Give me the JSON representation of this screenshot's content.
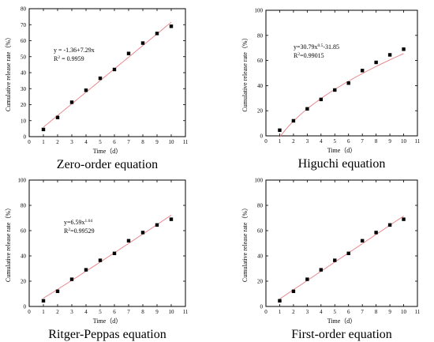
{
  "chart_data": [
    {
      "type": "scatter",
      "title": "Zero-order equation",
      "xlabel": "Time（d）",
      "ylabel": "Cumulative release rate（%）",
      "xlim": [
        0,
        11
      ],
      "ylim": [
        0,
        80
      ],
      "xticks": [
        0,
        1,
        2,
        3,
        4,
        5,
        6,
        7,
        8,
        9,
        10,
        11
      ],
      "yticks": [
        0,
        10,
        20,
        30,
        40,
        50,
        60,
        70,
        80
      ],
      "x": [
        1,
        2,
        3,
        4,
        5,
        6,
        7,
        8,
        9,
        10
      ],
      "y": [
        4.5,
        12,
        21.5,
        29,
        36.5,
        42,
        52,
        58.5,
        64.5,
        69
      ],
      "equation": {
        "line1": "y = -1.36+7.29x",
        "r2_prefix": "R",
        "r2_sup": "2",
        "r2_value": " = 0.9959"
      },
      "fit": {
        "model": "linear",
        "a": 7.29,
        "b": -1.36
      }
    },
    {
      "type": "scatter",
      "title": "Higuchi equation",
      "xlabel": "Time（d）",
      "ylabel": "Cumulative release rate（%）",
      "xlim": [
        0,
        11
      ],
      "ylim": [
        0,
        100
      ],
      "xticks": [
        0,
        1,
        2,
        3,
        4,
        5,
        6,
        7,
        8,
        9,
        10,
        11
      ],
      "yticks": [
        0,
        20,
        40,
        60,
        80,
        100
      ],
      "x": [
        1,
        2,
        3,
        4,
        5,
        6,
        7,
        8,
        9,
        10
      ],
      "y": [
        4.5,
        12,
        21.5,
        29,
        36.5,
        42,
        52,
        58.5,
        64.5,
        69
      ],
      "equation": {
        "line1_pre": "y=30.79x",
        "line1_sup": "0.5",
        "line1_post": "-31.85",
        "r2_prefix": "R",
        "r2_sup": "2",
        "r2_value": "=0.99015"
      },
      "fit": {
        "model": "higuchi",
        "k": 30.79,
        "b": -31.85
      }
    },
    {
      "type": "scatter",
      "title": "Ritger-Peppas equation",
      "xlabel": "Time（d）",
      "ylabel": "Cumulative release rate（%）",
      "xlim": [
        0,
        11
      ],
      "ylim": [
        0,
        100
      ],
      "xticks": [
        0,
        1,
        2,
        3,
        4,
        5,
        6,
        7,
        8,
        9,
        10,
        11
      ],
      "yticks": [
        0,
        20,
        40,
        60,
        80,
        100
      ],
      "x": [
        1,
        2,
        3,
        4,
        5,
        6,
        7,
        8,
        9,
        10
      ],
      "y": [
        4.5,
        12,
        21.5,
        29,
        36.5,
        42,
        52,
        58.5,
        64.5,
        69
      ],
      "equation": {
        "line1_pre": "y=6.59x",
        "line1_sup": "1.04",
        "line1_post": "",
        "r2_prefix": "R",
        "r2_sup": "2",
        "r2_value": "=0.99529"
      },
      "fit": {
        "model": "power",
        "k": 6.59,
        "n": 1.04
      }
    },
    {
      "type": "scatter",
      "title": "First-order equation",
      "xlabel": "Time（d）",
      "ylabel": "Cumulative release rate（%）",
      "xlim": [
        0,
        11
      ],
      "ylim": [
        0,
        100
      ],
      "xticks": [
        0,
        1,
        2,
        3,
        4,
        5,
        6,
        7,
        8,
        9,
        10,
        11
      ],
      "yticks": [
        0,
        20,
        40,
        60,
        80,
        100
      ],
      "x": [
        1,
        2,
        3,
        4,
        5,
        6,
        7,
        8,
        9,
        10
      ],
      "y": [
        4.5,
        12,
        21.5,
        29,
        36.5,
        42,
        52,
        58.5,
        64.5,
        69
      ],
      "fit": {
        "model": "linear",
        "a": 7.29,
        "b": -1.36
      }
    }
  ],
  "colors": {
    "fit_line": "#e87f86",
    "points": "#000000"
  }
}
